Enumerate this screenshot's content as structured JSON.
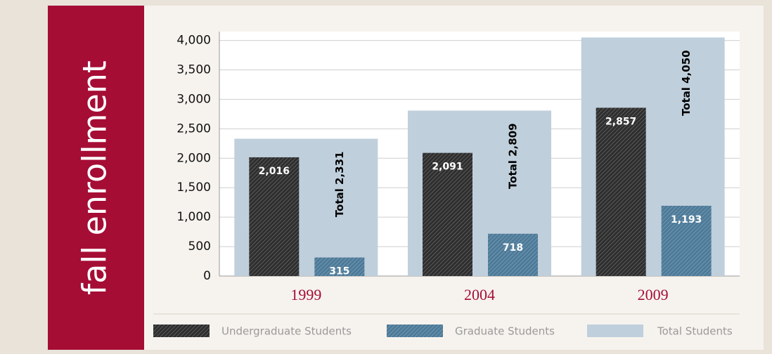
{
  "chart_data": {
    "type": "bar",
    "title": "fall enrollment",
    "categories": [
      "1999",
      "2004",
      "2009"
    ],
    "series": [
      {
        "name": "Undergraduate Students",
        "color": "#2e2e2e",
        "values": [
          2016,
          2091,
          2857
        ],
        "value_labels": [
          "2,016",
          "2,091",
          "2,857"
        ]
      },
      {
        "name": "Graduate Students",
        "color": "#4d7a98",
        "values": [
          315,
          718,
          1193
        ],
        "value_labels": [
          "315",
          "718",
          "1,193"
        ]
      },
      {
        "name": "Total Students",
        "color": "#c0cfdc",
        "values": [
          2331,
          2809,
          4050
        ],
        "value_labels": [
          "Total 2,331",
          "Total 2,809",
          "Total 4,050"
        ]
      }
    ],
    "ylim": [
      0,
      4150
    ],
    "yticks": [
      0,
      500,
      {
        "value": 1000,
        "label": "1,000"
      },
      {
        "value": 1500,
        "label": "1,500"
      },
      {
        "value": 2000,
        "label": "2,000"
      },
      {
        "value": 2500,
        "label": "2,500"
      },
      {
        "value": 3000,
        "label": "3,000"
      },
      {
        "value": 3500,
        "label": "3,500"
      },
      {
        "value": 4000,
        "label": "4,000"
      }
    ],
    "grid": true
  }
}
